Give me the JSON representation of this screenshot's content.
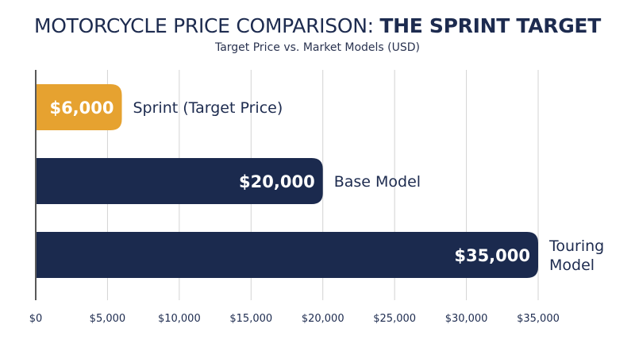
{
  "header": {
    "title_main": "MOTORCYCLE PRICE COMPARISON: ",
    "title_bold": "THE SPRINT TARGET",
    "subtitle": "Target Price vs. Market Models (USD)"
  },
  "chart_data": {
    "type": "bar",
    "orientation": "horizontal",
    "title": "MOTORCYCLE PRICE COMPARISON: THE SPRINT TARGET",
    "subtitle": "Target Price vs. Market Models (USD)",
    "categories": [
      "Sprint (Target Price)",
      "Base Model",
      "Touring Model"
    ],
    "category_lines": [
      [
        "Sprint (Target Price)"
      ],
      [
        "Base Model"
      ],
      [
        "Touring",
        "Model"
      ]
    ],
    "values": [
      6000,
      20000,
      35000
    ],
    "value_labels": [
      "$6,000",
      "$20,000",
      "$35,000"
    ],
    "bar_colors": [
      "#e6a230",
      "#1b2a4e",
      "#1b2a4e"
    ],
    "xlim": [
      0,
      35000
    ],
    "xticks": [
      0,
      5000,
      10000,
      15000,
      20000,
      25000,
      30000,
      35000
    ],
    "xtick_labels": [
      "$0",
      "$5,000",
      "$10,000",
      "$15,000",
      "$20,000",
      "$25,000",
      "$30,000",
      "$35,000"
    ],
    "grid": true,
    "legend": "none",
    "xlabel": "",
    "ylabel": ""
  }
}
